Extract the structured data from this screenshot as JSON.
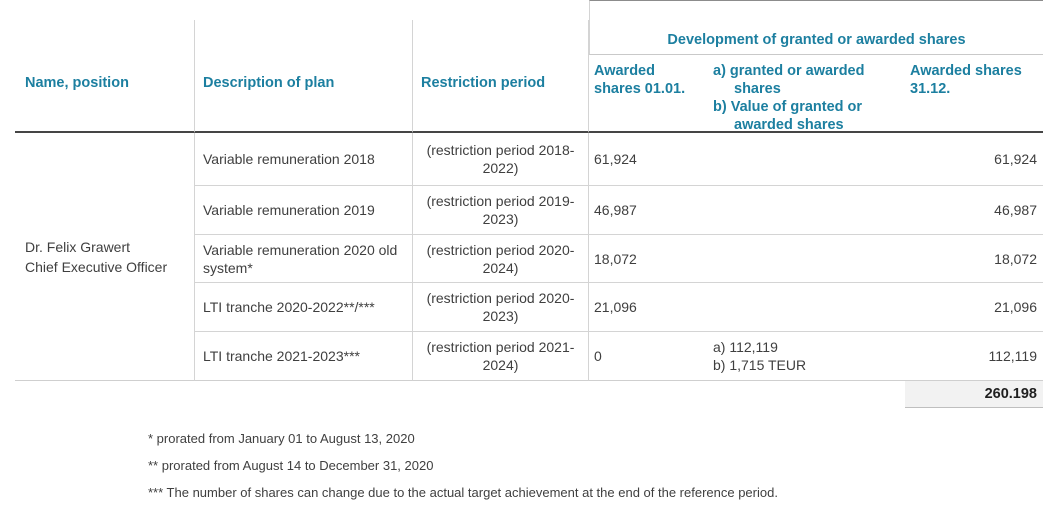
{
  "colors": {
    "header_teal": "#1c7fa0",
    "body_text": "#3f3f3f",
    "grid_line_light": "#d4d4d4",
    "header_underline_dark": "#454545",
    "total_row_bg": "#f2f2f2"
  },
  "table": {
    "group_header": "Development of granted or awarded shares",
    "headers": {
      "name": "Name, position",
      "plan": "Description of plan",
      "restriction": "Restriction period",
      "awarded_start": "Awarded shares 01.01.",
      "granted_a": "a) granted or awarded shares",
      "granted_b": "b) Value of granted or awarded shares",
      "awarded_end": "Awarded shares 31.12."
    },
    "person": {
      "name": "Dr. Felix Grawert",
      "position": "Chief Executive Officer"
    },
    "rows": [
      {
        "plan": "Variable remuneration 2018",
        "restriction": "(restriction period 2018-2022)",
        "awarded_start": "61,924",
        "granted_a": "",
        "granted_b": "",
        "awarded_end": "61,924"
      },
      {
        "plan": "Variable remuneration 2019",
        "restriction": "(restriction period 2019-2023)",
        "awarded_start": "46,987",
        "granted_a": "",
        "granted_b": "",
        "awarded_end": "46,987"
      },
      {
        "plan": "Variable remuneration 2020 old system*",
        "restriction": "(restriction period 2020-2024)",
        "awarded_start": "18,072",
        "granted_a": "",
        "granted_b": "",
        "awarded_end": "18,072"
      },
      {
        "plan": "LTI tranche 2020-2022**/***",
        "restriction": "(restriction period 2020-2023)",
        "awarded_start": "21,096",
        "granted_a": "",
        "granted_b": "",
        "awarded_end": "21,096"
      },
      {
        "plan": "LTI tranche 2021-2023***",
        "restriction": "(restriction period 2021-2024)",
        "awarded_start": "0",
        "granted_a": "a) 112,119",
        "granted_b": "b) 1,715 TEUR",
        "awarded_end": "112,119"
      }
    ],
    "total": "260.198"
  },
  "footnotes": [
    "* prorated from January 01 to August 13, 2020",
    "** prorated from August 14 to December 31, 2020",
    "*** The number of shares can change due to the actual target achievement at the end of the reference period."
  ]
}
